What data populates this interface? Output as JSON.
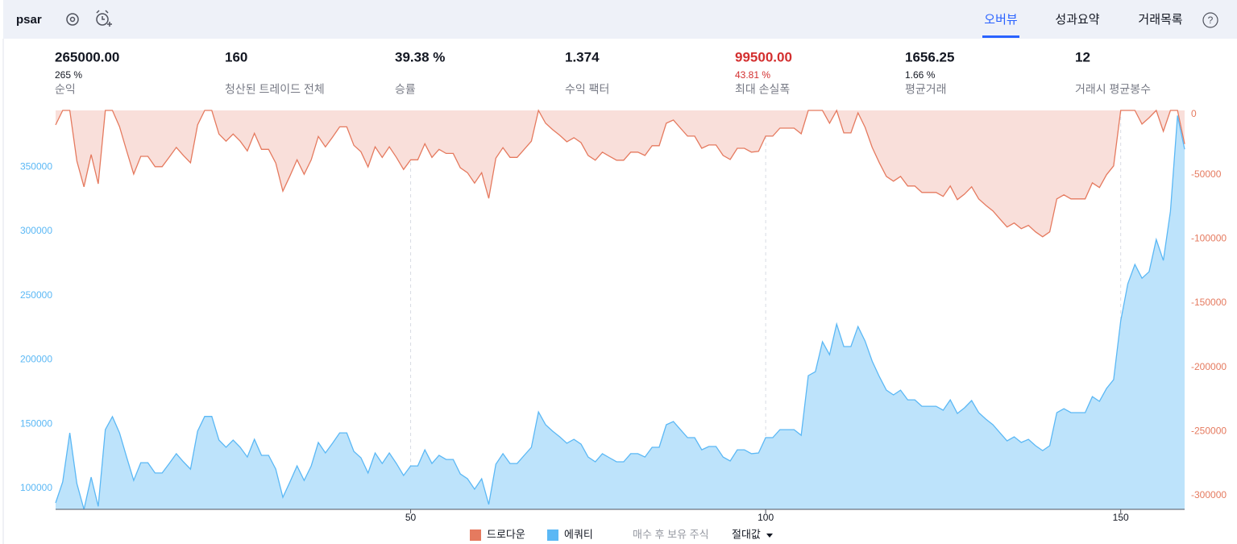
{
  "header": {
    "strategy": "psar",
    "tabs": [
      "오버뷰",
      "성과요약",
      "거래목록"
    ],
    "help": "?"
  },
  "stats": [
    {
      "value": "265000.00",
      "sub": "265 %",
      "label": "순익"
    },
    {
      "value": "160",
      "label": "청산된 트레이드 전체"
    },
    {
      "value": "39.38 %",
      "label": "승률"
    },
    {
      "value": "1.374",
      "label": "수익 팩터"
    },
    {
      "value": "99500.00",
      "sub": "43.81 %",
      "label": "최대 손실폭"
    },
    {
      "value": "1656.25",
      "sub": "1.66 %",
      "label": "평균거래"
    },
    {
      "value": "12",
      "label": "거래시 평균봉수"
    }
  ],
  "chart_data": {
    "type": "area",
    "x": [
      0,
      1,
      2,
      3,
      4,
      5,
      6,
      7,
      8,
      9,
      10,
      11,
      12,
      13,
      14,
      15,
      16,
      17,
      18,
      19,
      20,
      21,
      22,
      23,
      24,
      25,
      26,
      27,
      28,
      29,
      30,
      31,
      32,
      33,
      34,
      35,
      36,
      37,
      38,
      39,
      40,
      41,
      42,
      43,
      44,
      45,
      46,
      47,
      48,
      49,
      50,
      51,
      52,
      53,
      54,
      55,
      56,
      57,
      58,
      59,
      60,
      61,
      62,
      63,
      64,
      65,
      66,
      67,
      68,
      69,
      70,
      71,
      72,
      73,
      74,
      75,
      76,
      77,
      78,
      79,
      80,
      81,
      82,
      83,
      84,
      85,
      86,
      87,
      88,
      89,
      90,
      91,
      92,
      93,
      94,
      95,
      96,
      97,
      98,
      99,
      100,
      101,
      102,
      103,
      104,
      105,
      106,
      107,
      108,
      109,
      110,
      111,
      112,
      113,
      114,
      115,
      116,
      117,
      118,
      119,
      120,
      121,
      122,
      123,
      124,
      125,
      126,
      127,
      128,
      129,
      130,
      131,
      132,
      133,
      134,
      135,
      136,
      137,
      138,
      139,
      140,
      141,
      142,
      143,
      144,
      145,
      146,
      147,
      148,
      149,
      150,
      151,
      152,
      153,
      154,
      155,
      156,
      157,
      158,
      159
    ],
    "xlim": [
      0,
      159
    ],
    "xticks": [
      50,
      100,
      150
    ],
    "ylim": [
      83700,
      394000
    ],
    "yticks": [
      100000,
      150000,
      200000,
      250000,
      300000,
      350000
    ],
    "y2lim": [
      -310700,
      0
    ],
    "y2ticks": [
      0,
      -50000,
      -100000,
      -150000,
      -200000,
      -250000,
      -300000
    ],
    "series": [
      {
        "name": "드로다운",
        "color": "#e57a5f",
        "fill": "#f9dfda",
        "axis": "y2",
        "values": [
          -11300,
          0,
          0,
          -39500,
          -59500,
          -34400,
          -57200,
          0,
          0,
          -12600,
          -31400,
          -49600,
          -35800,
          -35800,
          -43800,
          -43800,
          -36400,
          -28800,
          -35100,
          -40800,
          -11300,
          0,
          0,
          -18400,
          -24000,
          -18400,
          -24000,
          -31600,
          -17800,
          -30300,
          -30300,
          -41000,
          -62900,
          -51000,
          -38500,
          -49800,
          -38500,
          -20300,
          -28400,
          -20900,
          -12800,
          -12800,
          -27200,
          -32200,
          -44000,
          -28400,
          -36600,
          -28400,
          -36600,
          -46000,
          -38500,
          -38500,
          -26000,
          -36600,
          -30300,
          -33500,
          -33500,
          -44700,
          -48500,
          -56600,
          -48500,
          -68500,
          -37200,
          -29000,
          -36600,
          -36600,
          -30300,
          -24000,
          0,
          -10000,
          -15000,
          -19400,
          -24400,
          -21300,
          -25100,
          -35100,
          -38800,
          -32500,
          -35700,
          -38800,
          -38800,
          -32500,
          -32500,
          -35100,
          -27500,
          -27500,
          -10000,
          -7500,
          -13800,
          -20000,
          -20000,
          -29500,
          -26900,
          -26900,
          -35100,
          -38200,
          -29500,
          -29500,
          -32500,
          -31900,
          -20000,
          -20000,
          -13800,
          -13800,
          -13800,
          -18200,
          0,
          0,
          0,
          -10000,
          0,
          -17500,
          -17500,
          -1900,
          -13200,
          -28800,
          -40700,
          -51400,
          -55100,
          -51400,
          -58900,
          -58900,
          -63900,
          -63900,
          -63900,
          -67000,
          -58900,
          -69500,
          -65200,
          -59500,
          -68900,
          -73900,
          -78300,
          -84600,
          -90800,
          -87700,
          -92100,
          -89600,
          -94600,
          -98400,
          -94600,
          -68900,
          -65800,
          -68900,
          -68900,
          -68900,
          -56400,
          -60100,
          -50100,
          -43200,
          0,
          0,
          0,
          -10700,
          -5700,
          0,
          -16300,
          0,
          0,
          -26200
        ]
      },
      {
        "name": "에쿼티",
        "color": "#5bb8f5",
        "fill": "#bde3fb",
        "values": [
          88700,
          105000,
          143200,
          103700,
          83700,
          108800,
          86000,
          145700,
          155800,
          143200,
          124400,
          106200,
          120000,
          120000,
          112000,
          112000,
          119400,
          127000,
          120700,
          115000,
          144500,
          156000,
          156000,
          137600,
          132000,
          137600,
          132000,
          124400,
          138200,
          125700,
          125700,
          115000,
          93100,
          105000,
          117500,
          106200,
          117500,
          135700,
          127600,
          135100,
          143200,
          143200,
          128800,
          123800,
          112000,
          127600,
          119400,
          127600,
          119400,
          110000,
          117500,
          117500,
          130000,
          119400,
          125700,
          122500,
          122500,
          111300,
          107500,
          99400,
          107500,
          87500,
          118800,
          127000,
          119400,
          119400,
          125700,
          132000,
          159500,
          149500,
          144500,
          140100,
          135100,
          138200,
          134400,
          124400,
          120700,
          127000,
          123800,
          120700,
          120700,
          127000,
          127000,
          124400,
          132000,
          132000,
          149500,
          152000,
          145700,
          139500,
          139500,
          130000,
          132600,
          132600,
          124400,
          121300,
          130000,
          130000,
          127000,
          127600,
          139500,
          139500,
          145700,
          145700,
          145700,
          141300,
          187700,
          190800,
          214000,
          204000,
          227800,
          210300,
          210300,
          225900,
          214600,
          199000,
          187100,
          176400,
          172700,
          176400,
          168900,
          168900,
          163900,
          163900,
          163900,
          160800,
          168900,
          158300,
          162600,
          168300,
          158900,
          153900,
          149500,
          143200,
          137000,
          140100,
          135700,
          138200,
          133200,
          129400,
          133200,
          158900,
          162000,
          158900,
          158900,
          158900,
          171400,
          167700,
          177700,
          184600,
          230300,
          259100,
          274200,
          263500,
          268500,
          293600,
          277300,
          315500,
          390000,
          363800
        ]
      }
    ],
    "extra_legend": "매수 후 보유 주식",
    "scale_mode": "절대값"
  }
}
